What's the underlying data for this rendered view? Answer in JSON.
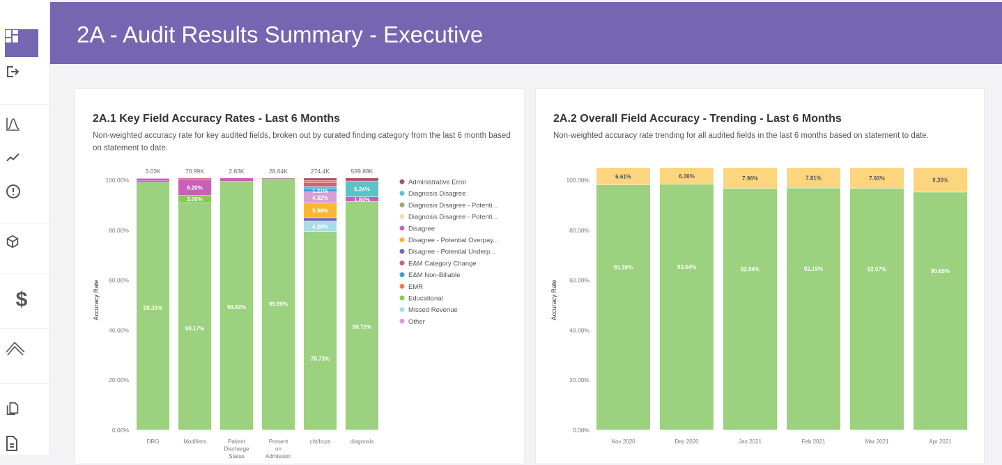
{
  "header": {
    "title": "2A - Audit Results Summary - Executive"
  },
  "sidebar": {
    "items": [
      {
        "icon": "dashboard-icon",
        "active": true
      },
      {
        "icon": "logout-icon"
      },
      {
        "icon": "distribution-chart-icon"
      },
      {
        "icon": "trend-line-icon"
      },
      {
        "icon": "alert-circle-icon"
      },
      {
        "icon": "cube-icon"
      },
      {
        "icon": "dollar-icon"
      },
      {
        "icon": "double-chevron-up-icon"
      },
      {
        "icon": "copy-icon"
      },
      {
        "icon": "document-icon"
      }
    ]
  },
  "cards": [
    {
      "title": "2A.1 Key Field Accuracy Rates - Last 6 Months",
      "description": "Non-weighted accuracy rate for key audited fields, broken out by curated finding category from the last 6 month based on statement to date."
    },
    {
      "title": "2A.2 Overall Field Accuracy - Trending - Last 6 Months",
      "description": "Non-weighted accuracy rate trending for all audited fields in the last 6 months based on statement to date."
    }
  ],
  "chart_data": [
    {
      "type": "bar",
      "stacked": true,
      "ylabel": "Accuracy Rate",
      "ylim": [
        0,
        100
      ],
      "yticks": [
        "0.00%",
        "20.00%",
        "40.00%",
        "60.00%",
        "80.00%",
        "100.00%"
      ],
      "categories": [
        "DRG",
        "Modifiers",
        "Patient Discharge Status",
        "Present on Admission",
        "cht/hcps",
        "diagnosis"
      ],
      "totals": [
        "3.03K",
        "70.99K",
        "2.83K",
        "28.64K",
        "274.4K",
        "589.89K"
      ],
      "legend_position": "right",
      "legend": [
        {
          "name": "Administrative Error",
          "color": "#a8506a"
        },
        {
          "name": "Diagnosis Disagree",
          "color": "#5bc2c6"
        },
        {
          "name": "Diagnosis Disagree - Potenti...",
          "color": "#a9a46a"
        },
        {
          "name": "Diagnosis Disagree - Potenti...",
          "color": "#f0e2a6"
        },
        {
          "name": "Disagree",
          "color": "#c660b8"
        },
        {
          "name": "Disagree - Potential Overpay...",
          "color": "#fbb733"
        },
        {
          "name": "Disagree - Potential Underp...",
          "color": "#7866b4"
        },
        {
          "name": "E&M Category Change",
          "color": "#d45d78"
        },
        {
          "name": "E&M Non-Billable",
          "color": "#3a9ee0"
        },
        {
          "name": "EMR",
          "color": "#f47a45"
        },
        {
          "name": "Educational",
          "color": "#8bc65a"
        },
        {
          "name": "Missed Revenue",
          "color": "#a6dde6"
        },
        {
          "name": "Other",
          "color": "#d6a0d8"
        }
      ],
      "base_color": "#9bd17f",
      "series_values": [
        [
          {
            "c": null,
            "v": 98.35
          },
          {
            "c": "Disagree-Potential Underp",
            "ci": 6,
            "v": 0.5
          },
          {
            "c": "Disagree",
            "ci": 4,
            "v": 1.0
          }
        ],
        [
          {
            "c": null,
            "v": 90.17
          },
          {
            "ci": 10,
            "v": 3.0
          },
          {
            "ci": 4,
            "v": 6.2
          },
          {
            "ci": 7,
            "v": 0.6
          }
        ],
        [
          {
            "c": null,
            "v": 98.62
          },
          {
            "ci": 4,
            "v": 1.38
          }
        ],
        [
          {
            "c": null,
            "v": 99.9
          },
          {
            "ci": 4,
            "v": 0.1
          }
        ],
        [
          {
            "c": null,
            "v": 78.73
          },
          {
            "ci": 11,
            "v": 4.26
          },
          {
            "ci": 6,
            "v": 1.2
          },
          {
            "ci": 5,
            "v": 5.96
          },
          {
            "ci": 12,
            "v": 4.32
          },
          {
            "ci": 8,
            "v": 1.21
          },
          {
            "ci": 1,
            "v": 1.0
          },
          {
            "ci": 7,
            "v": 1.5
          },
          {
            "ci": 9,
            "v": 0.8
          },
          {
            "ci": 0,
            "v": 1.0
          }
        ],
        [
          {
            "c": null,
            "v": 90.72
          },
          {
            "ci": 4,
            "v": 1.84
          },
          {
            "ci": 1,
            "v": 6.24
          },
          {
            "ci": 0,
            "v": 1.2
          }
        ]
      ],
      "labels_shown": [
        "98.35%",
        "90.17%",
        "3.00%",
        "6.20%",
        "98.62%",
        "99.90%",
        "78.73%",
        "4.26%",
        "5.96%",
        "4.32%",
        "1.21%",
        "90.72%",
        "1.84%",
        "6.24%"
      ]
    },
    {
      "type": "bar",
      "stacked": true,
      "ylabel": "Accuracy Rate",
      "ylim": [
        0,
        100
      ],
      "yticks": [
        "0.00%",
        "20.00%",
        "40.00%",
        "60.00%",
        "80.00%",
        "100.00%"
      ],
      "categories": [
        "Nov 2020",
        "Dec 2020",
        "Jan 2021",
        "Feb 2021",
        "Mar 2021",
        "Apr 2021"
      ],
      "series": [
        {
          "color": "#9bd17f",
          "values": [
            93.39,
            93.64,
            92.04,
            92.19,
            92.07,
            90.65
          ]
        },
        {
          "color": "#fcd67e",
          "values": [
            6.61,
            6.36,
            7.96,
            7.81,
            7.93,
            9.35
          ]
        }
      ]
    }
  ]
}
